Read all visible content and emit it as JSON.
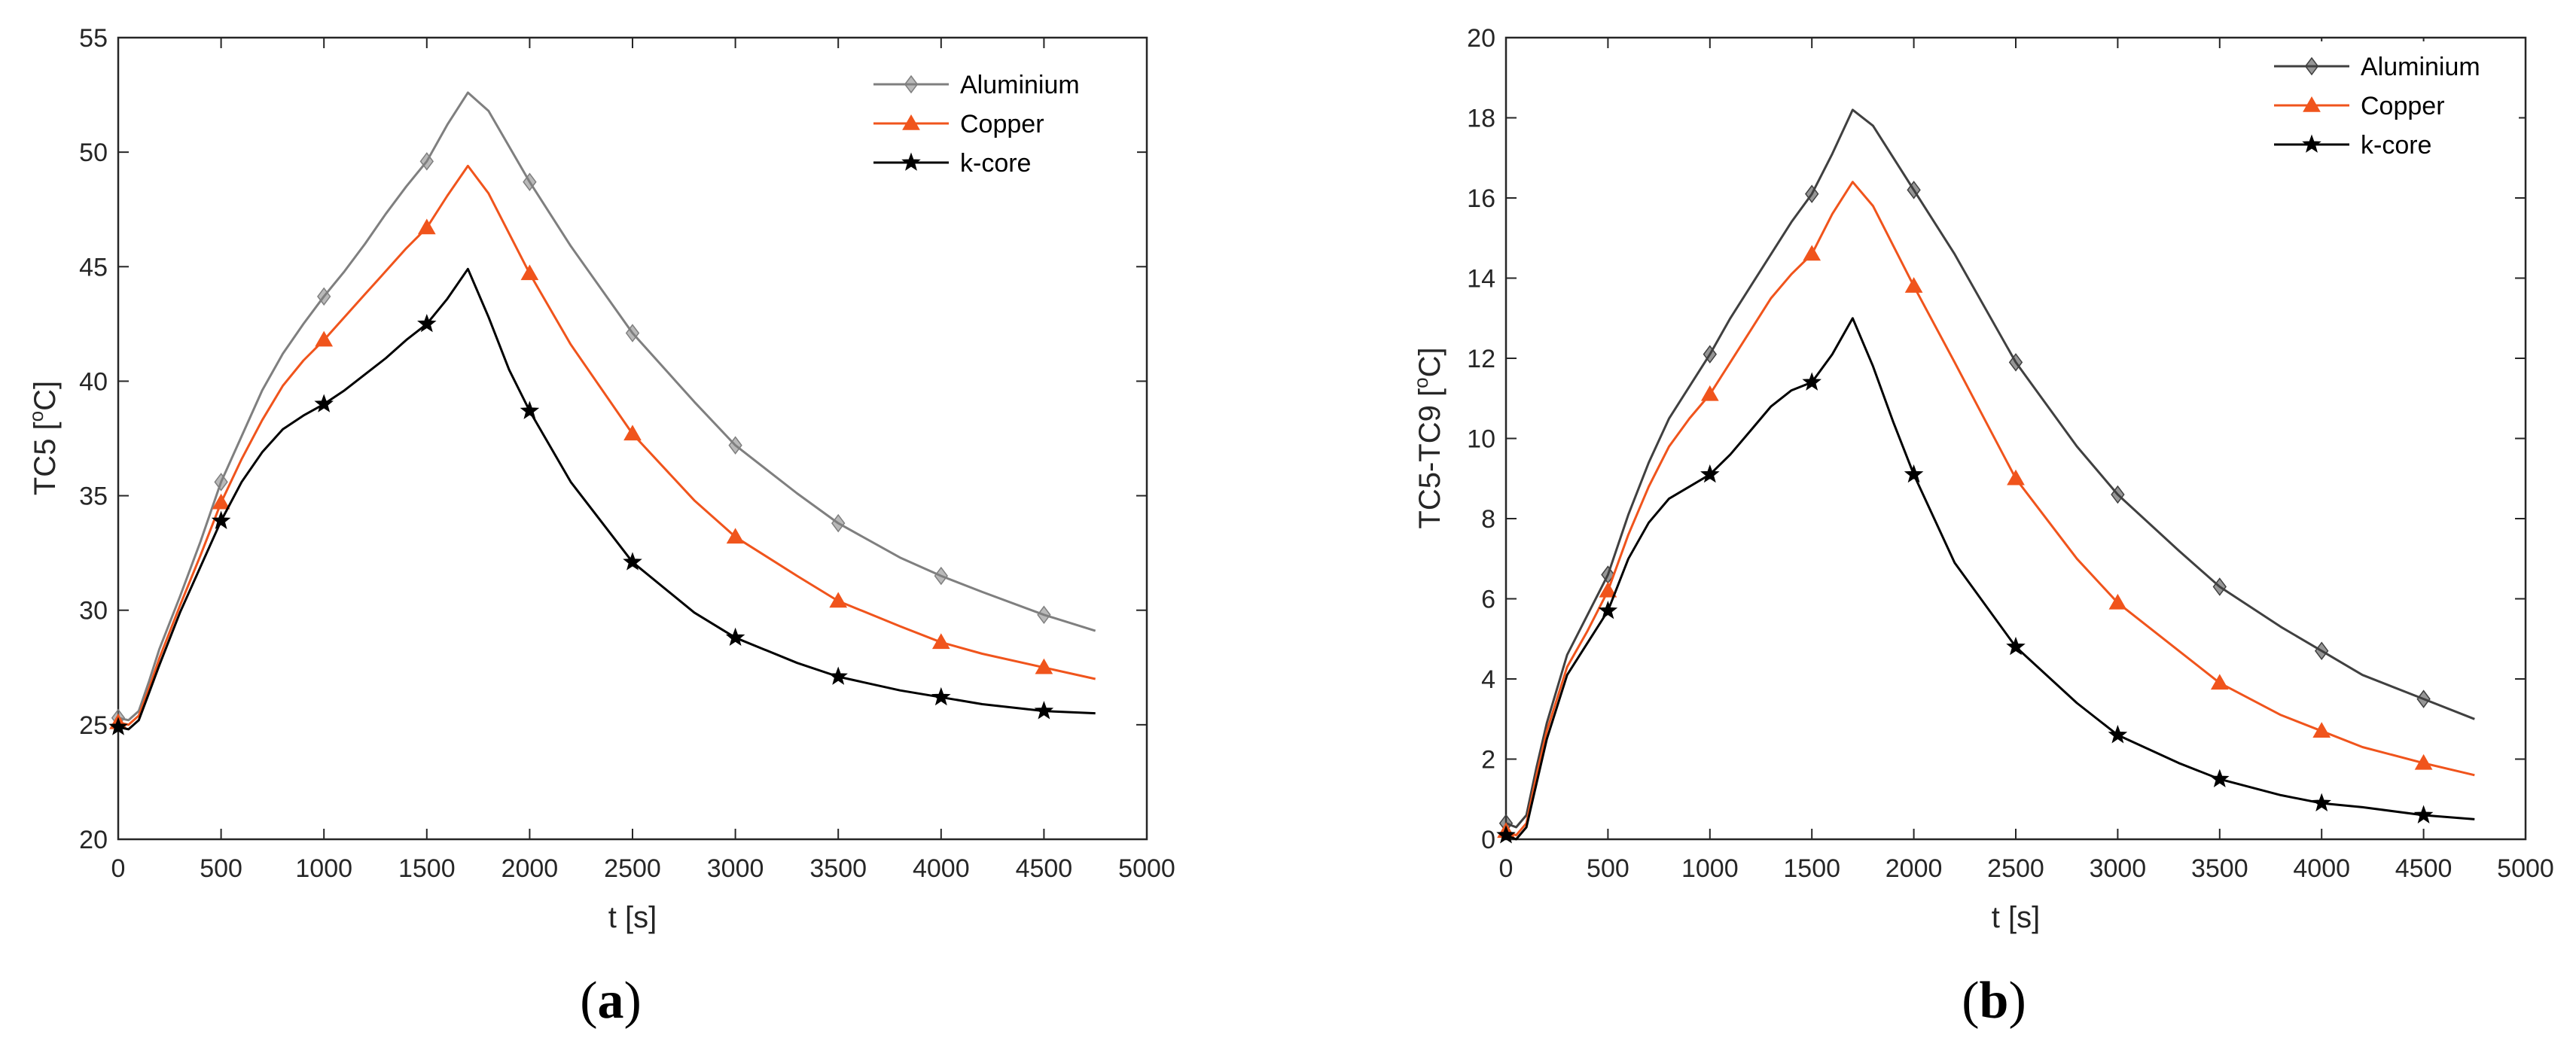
{
  "chart_data": [
    {
      "type": "line",
      "panel_label": {
        "open": "(",
        "letter": "a",
        "close": ")"
      },
      "xlabel": "t [s]",
      "ylabel_main": "TC5 [",
      "ylabel_sup": "o",
      "ylabel_tail": "C]",
      "xlim": [
        0,
        5000
      ],
      "ylim": [
        20,
        55
      ],
      "xticks": [
        0,
        500,
        1000,
        1500,
        2000,
        2500,
        3000,
        3500,
        4000,
        4500,
        5000
      ],
      "xtick_labels": [
        "0",
        "500",
        "1000",
        "1500",
        "2000",
        "2500",
        "3000",
        "3500",
        "4000",
        "4500",
        "5000"
      ],
      "yticks": [
        20,
        25,
        30,
        35,
        40,
        45,
        50,
        55
      ],
      "ytick_labels": [
        "20",
        "25",
        "30",
        "35",
        "40",
        "45",
        "50",
        "55"
      ],
      "legend_position": "top-right",
      "series": [
        {
          "name": "Aluminium",
          "color": "#7f7f7f",
          "marker": "diamond",
          "x": [
            0,
            50,
            100,
            150,
            200,
            300,
            400,
            500,
            600,
            700,
            800,
            900,
            1000,
            1100,
            1200,
            1300,
            1400,
            1500,
            1600,
            1700,
            1800,
            2000,
            2200,
            2500,
            2800,
            3000,
            3300,
            3500,
            3800,
            4000,
            4200,
            4500,
            4750
          ],
          "y": [
            25.3,
            25.2,
            25.6,
            26.9,
            28.3,
            30.6,
            33.0,
            35.6,
            37.6,
            39.6,
            41.2,
            42.5,
            43.7,
            44.8,
            46.0,
            47.3,
            48.5,
            49.6,
            51.2,
            52.6,
            51.8,
            48.7,
            45.9,
            42.1,
            39.1,
            37.2,
            35.1,
            33.8,
            32.3,
            31.5,
            30.8,
            29.8,
            29.1
          ],
          "marker_x": [
            0,
            500,
            1000,
            1500,
            2000,
            2500,
            3000,
            3500,
            4000,
            4500
          ],
          "marker_y": [
            25.3,
            35.6,
            43.7,
            49.6,
            48.7,
            42.1,
            37.2,
            33.8,
            31.5,
            29.8
          ]
        },
        {
          "name": "Copper",
          "color": "#f0541c",
          "marker": "triangle",
          "x": [
            0,
            50,
            100,
            150,
            200,
            300,
            400,
            500,
            600,
            700,
            800,
            900,
            1000,
            1100,
            1200,
            1300,
            1400,
            1500,
            1600,
            1700,
            1800,
            2000,
            2200,
            2500,
            2800,
            3000,
            3300,
            3500,
            3800,
            4000,
            4200,
            4500,
            4750
          ],
          "y": [
            25.1,
            25.0,
            25.4,
            26.6,
            27.9,
            30.2,
            32.4,
            34.7,
            36.6,
            38.3,
            39.8,
            40.9,
            41.8,
            42.8,
            43.8,
            44.8,
            45.8,
            46.7,
            48.1,
            49.4,
            48.2,
            44.7,
            41.6,
            37.7,
            34.8,
            33.2,
            31.5,
            30.4,
            29.3,
            28.6,
            28.1,
            27.5,
            27.0
          ],
          "marker_x": [
            0,
            500,
            1000,
            1500,
            2000,
            2500,
            3000,
            3500,
            4000,
            4500
          ],
          "marker_y": [
            25.1,
            34.7,
            41.8,
            46.7,
            44.7,
            37.7,
            33.2,
            30.4,
            28.6,
            27.5
          ]
        },
        {
          "name": "k-core",
          "color": "#000000",
          "marker": "star",
          "x": [
            0,
            50,
            100,
            150,
            200,
            300,
            400,
            500,
            600,
            700,
            800,
            900,
            1000,
            1100,
            1200,
            1300,
            1400,
            1500,
            1600,
            1700,
            1800,
            1900,
            2000,
            2200,
            2500,
            2800,
            3000,
            3300,
            3500,
            3800,
            4000,
            4200,
            4500,
            4750
          ],
          "y": [
            24.9,
            24.8,
            25.2,
            26.4,
            27.6,
            29.9,
            31.9,
            33.9,
            35.6,
            36.9,
            37.9,
            38.5,
            39.0,
            39.6,
            40.3,
            41.0,
            41.8,
            42.5,
            43.6,
            44.9,
            42.8,
            40.5,
            38.7,
            35.6,
            32.1,
            29.9,
            28.8,
            27.7,
            27.1,
            26.5,
            26.2,
            25.9,
            25.6,
            25.5
          ],
          "marker_x": [
            0,
            500,
            1000,
            1500,
            2000,
            2500,
            3000,
            3500,
            4000,
            4500
          ],
          "marker_y": [
            24.9,
            33.9,
            39.0,
            42.5,
            38.7,
            32.1,
            28.8,
            27.1,
            26.2,
            25.6
          ]
        }
      ]
    },
    {
      "type": "line",
      "panel_label": {
        "open": "(",
        "letter": "b",
        "close": ")"
      },
      "xlabel": "t [s]",
      "ylabel_main": "TC5-TC9 [",
      "ylabel_sup": "o",
      "ylabel_tail": "C]",
      "xlim": [
        0,
        5000
      ],
      "ylim": [
        0,
        20
      ],
      "xticks": [
        0,
        500,
        1000,
        1500,
        2000,
        2500,
        3000,
        3500,
        4000,
        4500,
        5000
      ],
      "xtick_labels": [
        "0",
        "500",
        "1000",
        "1500",
        "2000",
        "2500",
        "3000",
        "3500",
        "4000",
        "4500",
        "5000"
      ],
      "yticks": [
        0,
        2,
        4,
        6,
        8,
        10,
        12,
        14,
        16,
        18,
        20
      ],
      "ytick_labels": [
        "0",
        "2",
        "4",
        "6",
        "8",
        "10",
        "12",
        "14",
        "16",
        "18",
        "20"
      ],
      "legend_position": "top-right",
      "series": [
        {
          "name": "Aluminium",
          "color": "#404040",
          "marker": "diamond",
          "x": [
            0,
            50,
            100,
            150,
            200,
            300,
            400,
            500,
            600,
            700,
            800,
            900,
            1000,
            1100,
            1200,
            1300,
            1400,
            1500,
            1600,
            1700,
            1800,
            2000,
            2200,
            2500,
            2800,
            3000,
            3300,
            3500,
            3800,
            4000,
            4200,
            4500,
            4750
          ],
          "y": [
            0.4,
            0.3,
            0.6,
            1.8,
            2.9,
            4.6,
            5.6,
            6.6,
            8.1,
            9.4,
            10.5,
            11.3,
            12.1,
            13.0,
            13.8,
            14.6,
            15.4,
            16.1,
            17.1,
            18.2,
            17.8,
            16.2,
            14.6,
            11.9,
            9.8,
            8.6,
            7.2,
            6.3,
            5.3,
            4.7,
            4.1,
            3.5,
            3.0
          ],
          "marker_x": [
            0,
            500,
            1000,
            1500,
            2000,
            2500,
            3000,
            3500,
            4000,
            4500
          ],
          "marker_y": [
            0.4,
            6.6,
            12.1,
            16.1,
            16.2,
            11.9,
            8.6,
            6.3,
            4.7,
            3.5
          ]
        },
        {
          "name": "Copper",
          "color": "#f0541c",
          "marker": "triangle",
          "x": [
            0,
            50,
            100,
            150,
            200,
            300,
            400,
            500,
            600,
            700,
            800,
            900,
            1000,
            1100,
            1200,
            1300,
            1400,
            1500,
            1600,
            1700,
            1800,
            2000,
            2200,
            2500,
            2800,
            3000,
            3300,
            3500,
            3800,
            4000,
            4200,
            4500,
            4750
          ],
          "y": [
            0.2,
            0.1,
            0.4,
            1.6,
            2.7,
            4.3,
            5.2,
            6.2,
            7.6,
            8.8,
            9.8,
            10.5,
            11.1,
            11.9,
            12.7,
            13.5,
            14.1,
            14.6,
            15.6,
            16.4,
            15.8,
            13.8,
            11.9,
            9.0,
            7.0,
            5.9,
            4.7,
            3.9,
            3.1,
            2.7,
            2.3,
            1.9,
            1.6
          ],
          "marker_x": [
            0,
            500,
            1000,
            1500,
            2000,
            2500,
            3000,
            3500,
            4000,
            4500
          ],
          "marker_y": [
            0.2,
            6.2,
            11.1,
            14.6,
            13.8,
            9.0,
            5.9,
            3.9,
            2.7,
            1.9
          ]
        },
        {
          "name": "k-core",
          "color": "#000000",
          "marker": "star",
          "x": [
            0,
            50,
            100,
            150,
            200,
            300,
            400,
            500,
            600,
            700,
            800,
            900,
            1000,
            1100,
            1200,
            1300,
            1400,
            1500,
            1600,
            1700,
            1800,
            1900,
            2000,
            2200,
            2500,
            2800,
            3000,
            3300,
            3500,
            3800,
            4000,
            4200,
            4500,
            4750
          ],
          "y": [
            0.1,
            0.0,
            0.3,
            1.4,
            2.5,
            4.1,
            4.9,
            5.7,
            7.0,
            7.9,
            8.5,
            8.8,
            9.1,
            9.6,
            10.2,
            10.8,
            11.2,
            11.4,
            12.1,
            13.0,
            11.8,
            10.4,
            9.1,
            6.9,
            4.8,
            3.4,
            2.6,
            1.9,
            1.5,
            1.1,
            0.9,
            0.8,
            0.6,
            0.5
          ],
          "marker_x": [
            0,
            500,
            1000,
            1500,
            2000,
            2500,
            3000,
            3500,
            4000,
            4500
          ],
          "marker_y": [
            0.1,
            5.7,
            9.1,
            11.4,
            9.1,
            4.8,
            2.6,
            1.5,
            0.9,
            0.6
          ]
        }
      ]
    }
  ]
}
